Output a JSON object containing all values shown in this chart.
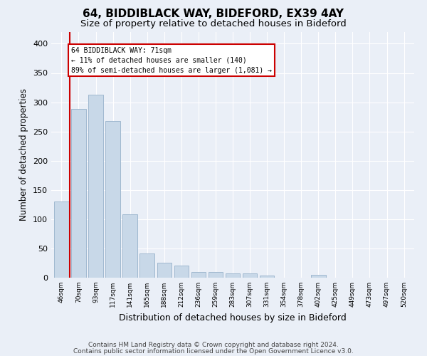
{
  "title1": "64, BIDDIBLACK WAY, BIDEFORD, EX39 4AY",
  "title2": "Size of property relative to detached houses in Bideford",
  "xlabel": "Distribution of detached houses by size in Bideford",
  "ylabel": "Number of detached properties",
  "footnote1": "Contains HM Land Registry data © Crown copyright and database right 2024.",
  "footnote2": "Contains public sector information licensed under the Open Government Licence v3.0.",
  "categories": [
    "46sqm",
    "70sqm",
    "93sqm",
    "117sqm",
    "141sqm",
    "165sqm",
    "188sqm",
    "212sqm",
    "236sqm",
    "259sqm",
    "283sqm",
    "307sqm",
    "331sqm",
    "354sqm",
    "378sqm",
    "402sqm",
    "425sqm",
    "449sqm",
    "473sqm",
    "497sqm",
    "520sqm"
  ],
  "values": [
    130,
    288,
    313,
    268,
    108,
    42,
    25,
    21,
    10,
    10,
    7,
    7,
    4,
    0,
    0,
    5,
    0,
    0,
    0,
    0,
    0
  ],
  "bar_color": "#c8d8e8",
  "bar_edge_color": "#a0b8d0",
  "property_line_color": "#cc0000",
  "annotation_line1": "64 BIDDIBLACK WAY: 71sqm",
  "annotation_line2": "← 11% of detached houses are smaller (140)",
  "annotation_line3": "89% of semi-detached houses are larger (1,081) →",
  "annotation_box_color": "#cc0000",
  "ylim": [
    0,
    420
  ],
  "yticks": [
    0,
    50,
    100,
    150,
    200,
    250,
    300,
    350,
    400
  ],
  "bg_color": "#eaeff7",
  "plot_bg_color": "#eaeff7",
  "grid_color": "#ffffff",
  "title1_fontsize": 11,
  "title2_fontsize": 9.5,
  "xlabel_fontsize": 9,
  "ylabel_fontsize": 8.5,
  "footnote_fontsize": 6.5
}
